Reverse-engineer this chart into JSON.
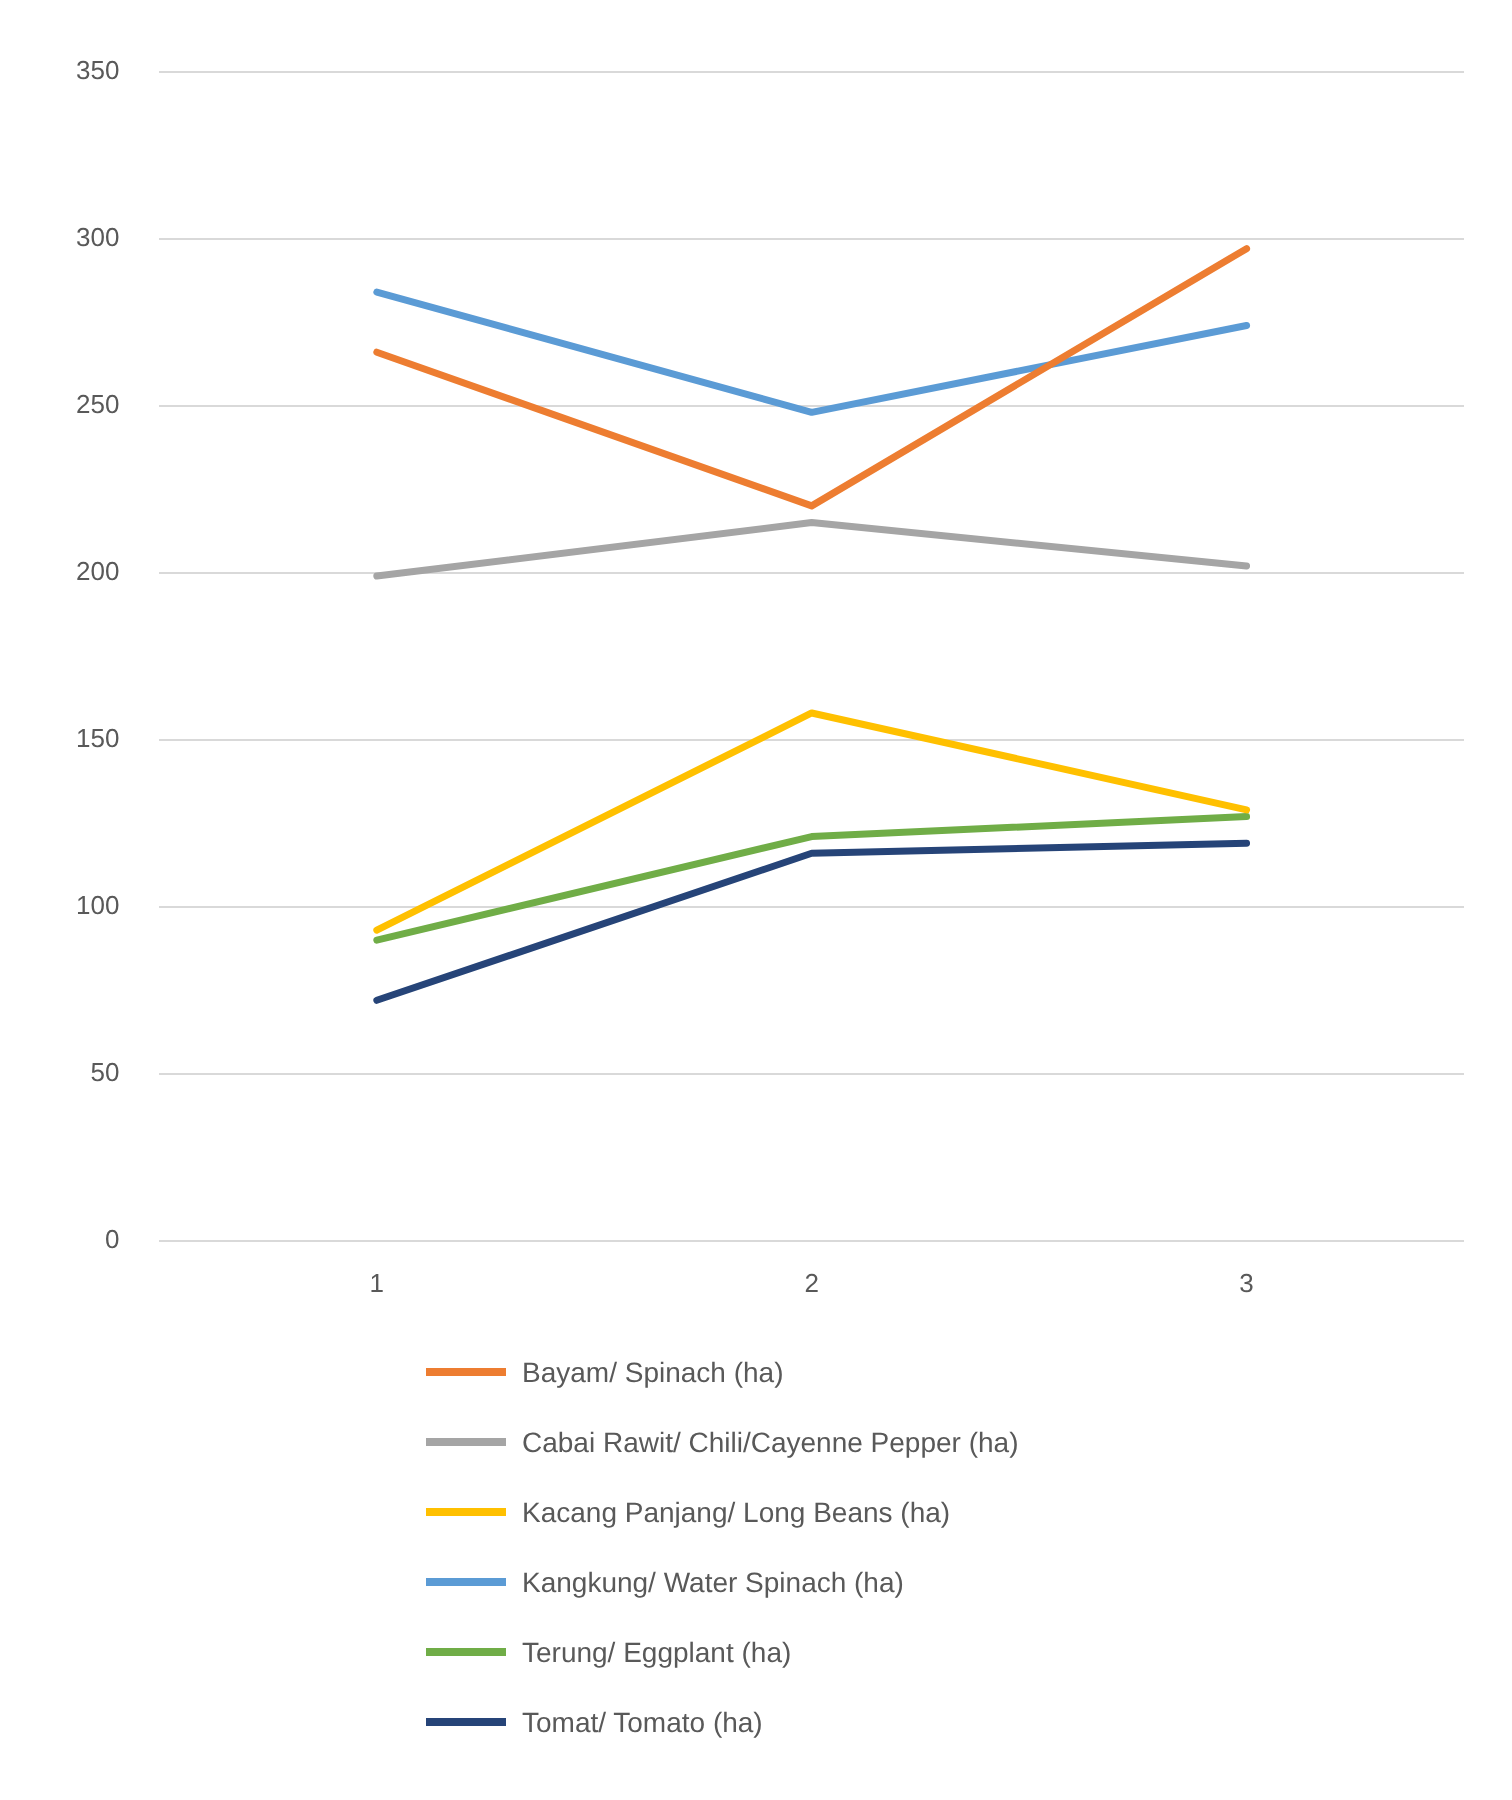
{
  "chart_data": {
    "type": "line",
    "categories": [
      "1",
      "2",
      "3"
    ],
    "ylim": [
      0,
      350
    ],
    "yticks": [
      0,
      50,
      100,
      150,
      200,
      250,
      300,
      350
    ],
    "grid": "y",
    "legend": "bottom",
    "marker": "none",
    "line_style": "solid",
    "series": [
      {
        "name": "Bayam/ Spinach  (ha)",
        "color": "#ed7d31",
        "values": [
          266,
          220,
          297
        ]
      },
      {
        "name": "Cabai Rawit/ Chili/Cayenne Pepper  (ha)",
        "color": "#a5a5a5",
        "values": [
          199,
          215,
          202
        ]
      },
      {
        "name": "Kacang Panjang/ Long Beans  (ha)",
        "color": "#ffc000",
        "values": [
          93,
          158,
          129
        ]
      },
      {
        "name": "Kangkung/ Water Spinach  (ha)",
        "color": "#5b9bd5",
        "values": [
          284,
          248,
          274
        ]
      },
      {
        "name": "Terung/ Eggplant  (ha)",
        "color": "#70ad47",
        "values": [
          90,
          121,
          127
        ]
      },
      {
        "name": "Tomat/ Tomato  (ha)",
        "color": "#264478",
        "values": [
          72,
          116,
          119
        ]
      }
    ]
  }
}
